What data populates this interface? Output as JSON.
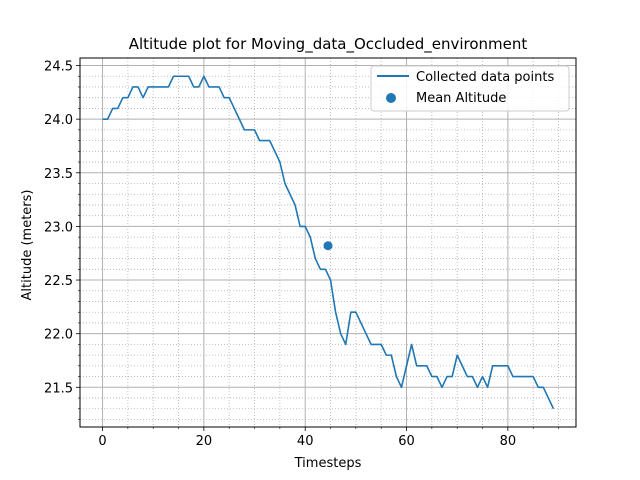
{
  "chart_data": {
    "type": "line",
    "title": "Altitude plot for Moving_data_Occluded_environment",
    "xlabel": "Timesteps",
    "ylabel": "Altitude (meters)",
    "xlim": [
      -4.45,
      93.45
    ],
    "ylim": [
      21.13,
      24.57
    ],
    "xticks": [
      0,
      20,
      40,
      60,
      80
    ],
    "xtick_labels": [
      "0",
      "20",
      "40",
      "60",
      "80"
    ],
    "x_minor_step": 5,
    "yticks": [
      21.5,
      22.0,
      22.5,
      23.0,
      23.5,
      24.0,
      24.5
    ],
    "ytick_labels": [
      "21.5",
      "22.0",
      "22.5",
      "23.0",
      "23.5",
      "24.0",
      "24.5"
    ],
    "y_minor_step": 0.1,
    "grid": true,
    "legend_position": "top-right",
    "series": [
      {
        "name": "Collected data points",
        "color": "#1f77b4",
        "x": [
          0,
          1,
          2,
          3,
          4,
          5,
          6,
          7,
          8,
          9,
          10,
          11,
          12,
          13,
          14,
          15,
          16,
          17,
          18,
          19,
          20,
          21,
          22,
          23,
          24,
          25,
          26,
          27,
          28,
          29,
          30,
          31,
          32,
          33,
          34,
          35,
          36,
          37,
          38,
          39,
          40,
          41,
          42,
          43,
          44,
          45,
          46,
          47,
          48,
          49,
          50,
          51,
          52,
          53,
          54,
          55,
          56,
          57,
          58,
          59,
          60,
          61,
          62,
          63,
          64,
          65,
          66,
          67,
          68,
          69,
          70,
          71,
          72,
          73,
          74,
          75,
          76,
          77,
          78,
          79,
          80,
          81,
          82,
          83,
          84,
          85,
          86,
          87,
          88,
          89
        ],
        "values": [
          24.0,
          24.0,
          24.1,
          24.1,
          24.2,
          24.2,
          24.3,
          24.3,
          24.2,
          24.3,
          24.3,
          24.3,
          24.3,
          24.3,
          24.4,
          24.4,
          24.4,
          24.4,
          24.3,
          24.3,
          24.4,
          24.3,
          24.3,
          24.3,
          24.2,
          24.2,
          24.1,
          24.0,
          23.9,
          23.9,
          23.9,
          23.8,
          23.8,
          23.8,
          23.7,
          23.6,
          23.4,
          23.3,
          23.2,
          23.0,
          23.0,
          22.9,
          22.7,
          22.6,
          22.6,
          22.5,
          22.2,
          22.0,
          21.9,
          22.2,
          22.2,
          22.1,
          22.0,
          21.9,
          21.9,
          21.9,
          21.8,
          21.8,
          21.6,
          21.5,
          21.7,
          21.9,
          21.7,
          21.7,
          21.7,
          21.6,
          21.6,
          21.5,
          21.6,
          21.6,
          21.8,
          21.7,
          21.6,
          21.6,
          21.5,
          21.6,
          21.5,
          21.7,
          21.7,
          21.7,
          21.7,
          21.6,
          21.6,
          21.6,
          21.6,
          21.6,
          21.5,
          21.5,
          21.4,
          21.3
        ]
      },
      {
        "name": "Mean Altitude",
        "type": "scatter",
        "color": "#1f77b4",
        "x": [
          44.5
        ],
        "values": [
          22.82
        ]
      }
    ]
  }
}
